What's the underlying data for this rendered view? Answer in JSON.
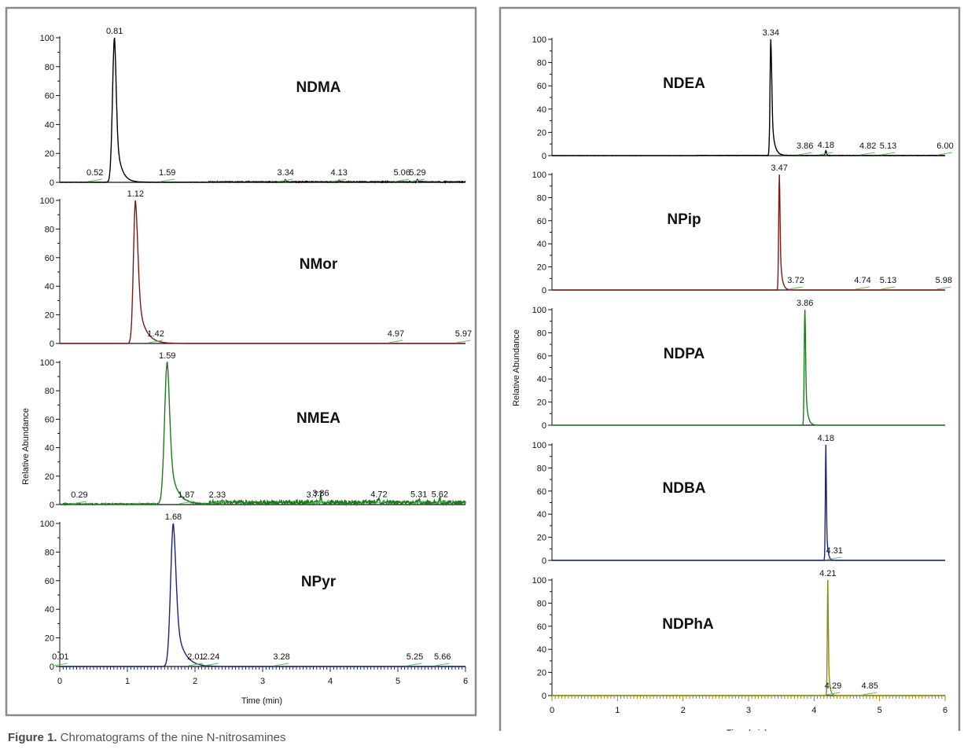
{
  "figure": {
    "caption_label": "Figure 1.",
    "caption_text": " Chromatograms of the nine N-nitrosamines",
    "x_label": "Time (min)",
    "y_label": "Relative Abundance",
    "x_ticks": [
      "0",
      "1",
      "2",
      "3",
      "4",
      "5",
      "6"
    ],
    "y_ticks": [
      "0",
      "20",
      "40",
      "60",
      "80",
      "100"
    ]
  },
  "chart_data": [
    {
      "type": "line",
      "title": "NDMA",
      "color": "#000000",
      "xlim": [
        0,
        6
      ],
      "ylim": [
        0,
        100
      ],
      "peak": {
        "rt": 0.81,
        "height": 100,
        "wl": 0.03,
        "wt": 0.07
      },
      "minor_peaks": [
        {
          "rt": 3.34,
          "height": 1.2
        },
        {
          "rt": 4.13,
          "height": 1
        },
        {
          "rt": 5.29,
          "height": 1.5
        }
      ],
      "noise": 0.6,
      "rt_labels": [
        "0.52",
        "0.81",
        "1.59",
        "3.34",
        "4.13",
        "5.06",
        "5.29"
      ]
    },
    {
      "type": "line",
      "title": "NMor",
      "color": "#7b1a14",
      "xlim": [
        0,
        6
      ],
      "ylim": [
        0,
        100
      ],
      "peak": {
        "rt": 1.12,
        "height": 100,
        "wl": 0.03,
        "wt": 0.1
      },
      "minor_peaks": [],
      "noise": 0,
      "rt_labels": [
        "1.12",
        "1.42",
        "4.97",
        "5.97"
      ]
    },
    {
      "type": "line",
      "title": "NMEA",
      "color": "#1e7a1e",
      "xlim": [
        0,
        6
      ],
      "ylim": [
        0,
        100
      ],
      "peak": {
        "rt": 1.59,
        "height": 100,
        "wl": 0.04,
        "wt": 0.1
      },
      "minor_peaks": [
        {
          "rt": 3.86,
          "height": 4
        },
        {
          "rt": 4.72,
          "height": 3
        },
        {
          "rt": 5.31,
          "height": 3
        },
        {
          "rt": 5.62,
          "height": 3
        }
      ],
      "noise": 3,
      "rt_labels": [
        "0.29",
        "1.59",
        "1.87",
        "2.33",
        "3.77",
        "3.86",
        "4.72",
        "5.31",
        "5.62"
      ]
    },
    {
      "type": "line",
      "title": "NPyr",
      "color": "#1a237e",
      "xlim": [
        0,
        6
      ],
      "ylim": [
        0,
        100
      ],
      "peak": {
        "rt": 1.68,
        "height": 100,
        "wl": 0.04,
        "wt": 0.11
      },
      "minor_peaks": [],
      "noise": 0,
      "rt_labels": [
        "0.01",
        "1.68",
        "2.01",
        "2.24",
        "3.28",
        "5.25",
        "5.66"
      ]
    },
    {
      "type": "line",
      "title": "NDEA",
      "color": "#000000",
      "xlim": [
        0,
        6
      ],
      "ylim": [
        0,
        100
      ],
      "peak": {
        "rt": 3.34,
        "height": 100,
        "wl": 0.012,
        "wt": 0.04
      },
      "minor_peaks": [
        {
          "rt": 4.18,
          "height": 4
        }
      ],
      "noise": 0.3,
      "rt_labels": [
        "3.34",
        "3.86",
        "4.18",
        "4.82",
        "5.13",
        "6.00"
      ]
    },
    {
      "type": "line",
      "title": "NPip",
      "color": "#7b1a14",
      "xlim": [
        0,
        6
      ],
      "ylim": [
        0,
        100
      ],
      "peak": {
        "rt": 3.47,
        "height": 100,
        "wl": 0.01,
        "wt": 0.03
      },
      "minor_peaks": [],
      "noise": 0,
      "rt_labels": [
        "3.47",
        "3.72",
        "4.74",
        "5.13",
        "5.98"
      ]
    },
    {
      "type": "line",
      "title": "NDPA",
      "color": "#1e7a1e",
      "xlim": [
        0,
        6
      ],
      "ylim": [
        0,
        100
      ],
      "peak": {
        "rt": 3.86,
        "height": 100,
        "wl": 0.01,
        "wt": 0.03
      },
      "minor_peaks": [],
      "noise": 0,
      "rt_labels": [
        "3.86"
      ]
    },
    {
      "type": "line",
      "title": "NDBA",
      "color": "#1a237e",
      "xlim": [
        0,
        6
      ],
      "ylim": [
        0,
        100
      ],
      "peak": {
        "rt": 4.18,
        "height": 100,
        "wl": 0.008,
        "wt": 0.02
      },
      "minor_peaks": [],
      "noise": 0,
      "rt_labels": [
        "4.18",
        "4.31"
      ]
    },
    {
      "type": "line",
      "title": "NDPhA",
      "color": "#8f8a10",
      "xlim": [
        0,
        6
      ],
      "ylim": [
        0,
        100
      ],
      "peak": {
        "rt": 4.21,
        "height": 100,
        "wl": 0.008,
        "wt": 0.02
      },
      "minor_peaks": [],
      "noise": 0,
      "rt_labels": [
        "4.21",
        "4.29",
        "4.85"
      ]
    }
  ]
}
